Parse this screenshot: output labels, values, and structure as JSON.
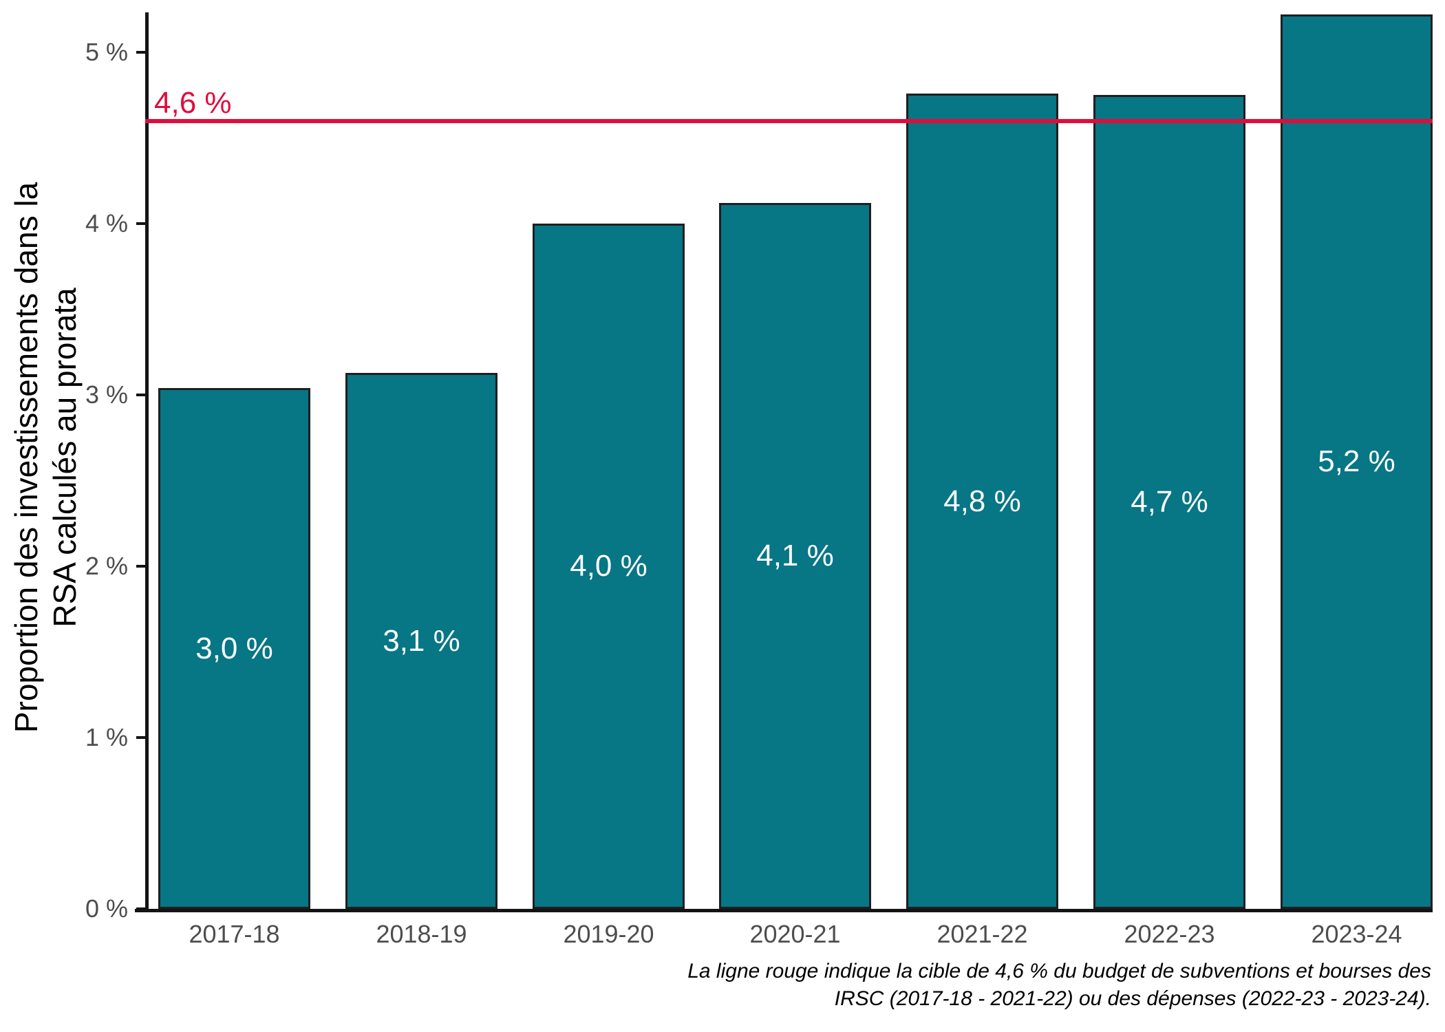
{
  "chart_data": {
    "type": "bar",
    "categories": [
      "2017-18",
      "2018-19",
      "2019-20",
      "2020-21",
      "2021-22",
      "2022-23",
      "2023-24"
    ],
    "values": [
      3.04,
      3.13,
      4.0,
      4.12,
      4.76,
      4.75,
      5.22
    ],
    "bar_labels": [
      "3,0 %",
      "3,1 %",
      "4,0 %",
      "4,1 %",
      "4,8 %",
      "4,7 %",
      "5,2 %"
    ],
    "ylabel_lines": [
      "Proportion des investissements dans la",
      "RSA calculés au prorata"
    ],
    "y_ticks": [
      {
        "value": 0,
        "label": "0 %"
      },
      {
        "value": 1,
        "label": "1 %"
      },
      {
        "value": 2,
        "label": "2 %"
      },
      {
        "value": 3,
        "label": "3 %"
      },
      {
        "value": 4,
        "label": "4 %"
      },
      {
        "value": 5,
        "label": "5 %"
      }
    ],
    "ylim": [
      0,
      5.23
    ],
    "grid": false,
    "legend": null,
    "target_line": {
      "value": 4.6,
      "label": "4,6 %"
    },
    "caption_lines": [
      "La ligne rouge indique la cible de 4,6 % du budget de subventions et bourses des",
      "IRSC (2017-18 - 2021-22) ou des dépenses (2022-23 - 2023-24)."
    ],
    "colors": {
      "bar": "#077685",
      "bar_border": "#1f1f1f",
      "bar_label": "#ffffff",
      "target": "#e00d3b",
      "axis": "#141414",
      "tick_label": "#4d4d4d"
    }
  }
}
